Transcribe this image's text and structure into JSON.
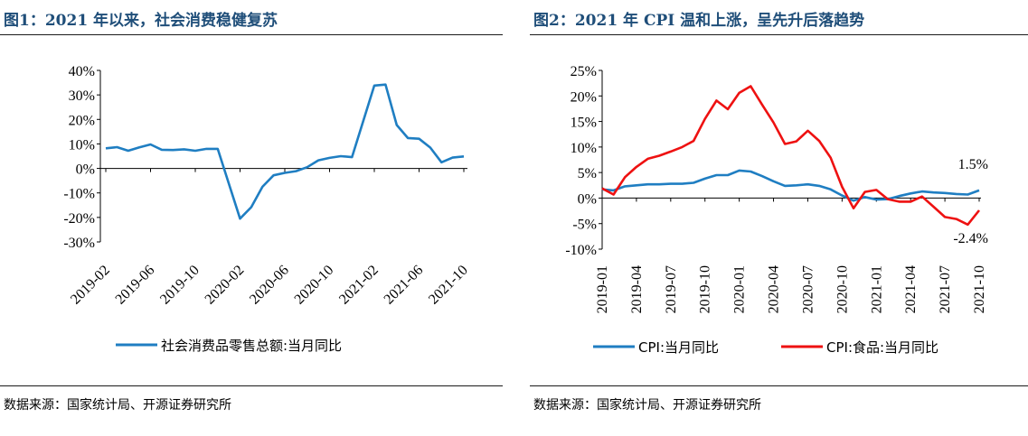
{
  "colors": {
    "title": "#1f4e79",
    "blue": "#1f7ec2",
    "red": "#ee1111"
  },
  "panel1": {
    "title": "图1：2021 年以来，社会消费稳健复苏",
    "source": "数据来源：国家统计局、开源证券研究所",
    "chart_data": {
      "type": "line",
      "ylim": [
        -30,
        40
      ],
      "ytick_values": [
        -30,
        -20,
        -10,
        0,
        10,
        20,
        30,
        40
      ],
      "ytick_labels": [
        "-30%",
        "-20%",
        "-10%",
        "0%",
        "10%",
        "20%",
        "30%",
        "40%"
      ],
      "xtick_labels": [
        "2019-02",
        "2019-06",
        "2019-10",
        "2020-02",
        "2020-06",
        "2020-10",
        "2021-02",
        "2021-06",
        "2021-10"
      ],
      "x": [
        "2019-02",
        "2019-03",
        "2019-04",
        "2019-05",
        "2019-06",
        "2019-07",
        "2019-08",
        "2019-09",
        "2019-10",
        "2019-11",
        "2019-12",
        "2020-01",
        "2020-02",
        "2020-03",
        "2020-04",
        "2020-05",
        "2020-06",
        "2020-07",
        "2020-08",
        "2020-09",
        "2020-10",
        "2020-11",
        "2020-12",
        "2021-01",
        "2021-02",
        "2021-03",
        "2021-04",
        "2021-05",
        "2021-06",
        "2021-07",
        "2021-08",
        "2021-09",
        "2021-10"
      ],
      "series": [
        {
          "name": "社会消费品零售总额:当月同比",
          "color": "#1f7ec2",
          "values": [
            8.2,
            8.7,
            7.2,
            8.6,
            9.8,
            7.6,
            7.5,
            7.8,
            7.2,
            8.0,
            8.0,
            null,
            -20.5,
            -15.8,
            -7.5,
            -2.8,
            -1.8,
            -1.1,
            0.5,
            3.3,
            4.3,
            5.0,
            4.6,
            null,
            33.8,
            34.2,
            17.7,
            12.4,
            12.1,
            8.5,
            2.5,
            4.4,
            4.9
          ]
        }
      ],
      "legend": "bottom"
    }
  },
  "panel2": {
    "title": "图2：2021 年 CPI 温和上涨，呈先升后落趋势",
    "source": "数据来源：国家统计局、开源证券研究所",
    "chart_data": {
      "type": "line",
      "ylim": [
        -10,
        25
      ],
      "ytick_values": [
        -10,
        -5,
        0,
        5,
        10,
        15,
        20,
        25
      ],
      "ytick_labels": [
        "-10%",
        "-5%",
        "0%",
        "5%",
        "10%",
        "15%",
        "20%",
        "25%"
      ],
      "xtick_labels": [
        "2019-01",
        "2019-04",
        "2019-07",
        "2019-10",
        "2020-01",
        "2020-04",
        "2020-07",
        "2020-10",
        "2021-01",
        "2021-04",
        "2021-07",
        "2021-10"
      ],
      "x": [
        "2019-01",
        "2019-02",
        "2019-03",
        "2019-04",
        "2019-05",
        "2019-06",
        "2019-07",
        "2019-08",
        "2019-09",
        "2019-10",
        "2019-11",
        "2019-12",
        "2020-01",
        "2020-02",
        "2020-03",
        "2020-04",
        "2020-05",
        "2020-06",
        "2020-07",
        "2020-08",
        "2020-09",
        "2020-10",
        "2020-11",
        "2020-12",
        "2021-01",
        "2021-02",
        "2021-03",
        "2021-04",
        "2021-05",
        "2021-06",
        "2021-07",
        "2021-08",
        "2021-09",
        "2021-10"
      ],
      "series": [
        {
          "name": "CPI:当月同比",
          "color": "#1f7ec2",
          "values": [
            1.7,
            1.5,
            2.3,
            2.5,
            2.7,
            2.7,
            2.8,
            2.8,
            3.0,
            3.8,
            4.5,
            4.5,
            5.4,
            5.2,
            4.3,
            3.3,
            2.4,
            2.5,
            2.7,
            2.4,
            1.7,
            0.5,
            -0.5,
            0.2,
            -0.3,
            -0.2,
            0.4,
            0.9,
            1.3,
            1.1,
            1.0,
            0.8,
            0.7,
            1.5
          ]
        },
        {
          "name": "CPI:食品:当月同比",
          "color": "#ee1111",
          "values": [
            1.9,
            0.7,
            4.1,
            6.1,
            7.7,
            8.3,
            9.1,
            10.0,
            11.2,
            15.5,
            19.1,
            17.4,
            20.6,
            21.9,
            18.3,
            14.8,
            10.6,
            11.1,
            13.2,
            11.2,
            7.9,
            2.2,
            -2.0,
            1.2,
            1.6,
            -0.2,
            -0.7,
            -0.7,
            0.3,
            -1.7,
            -3.7,
            -4.1,
            -5.2,
            -2.4
          ]
        }
      ],
      "annotations": [
        {
          "text": "1.5%",
          "series": 0,
          "index": 33
        },
        {
          "text": "-2.4%",
          "series": 1,
          "index": 33
        }
      ],
      "legend": "bottom"
    }
  }
}
